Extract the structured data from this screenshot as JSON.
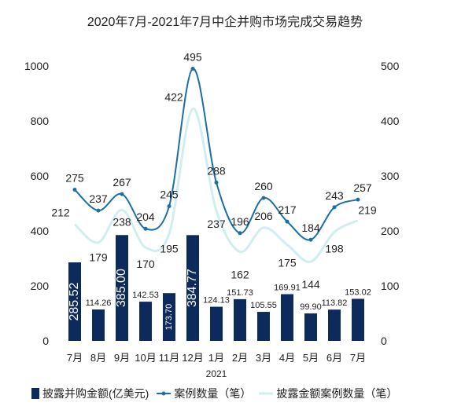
{
  "chart_data": {
    "type": "bar",
    "title": "2020年7月-2021年7月中企并购市场完成交易趋势",
    "categories": [
      "7月",
      "8月",
      "9月",
      "10月",
      "11月",
      "12月",
      "1月",
      "2月",
      "3月",
      "4月",
      "5月",
      "6月",
      "7月"
    ],
    "year_label": "2021",
    "y_left": {
      "ticks": [
        0,
        200,
        400,
        600,
        800,
        1000
      ],
      "lim": [
        0,
        1000
      ]
    },
    "y_right": {
      "ticks": [
        0,
        100,
        200,
        300,
        400,
        500
      ],
      "lim": [
        0,
        500
      ]
    },
    "series": [
      {
        "name": "披露并购金额(亿美元)",
        "type": "bar",
        "axis": "left",
        "color": "#0d2a5c",
        "values": [
          285.52,
          114.26,
          385.0,
          142.53,
          173.7,
          384.77,
          124.13,
          151.73,
          105.55,
          169.91,
          99.9,
          113.82,
          153.02
        ],
        "labels": [
          "285.52",
          "114.26",
          "385.00",
          "142.53",
          "173.70",
          "384.77",
          "124.13",
          "151.73",
          "105.55",
          "169.91",
          "99.90",
          "113.82",
          "153.02"
        ]
      },
      {
        "name": "案例数量（笔）",
        "type": "line",
        "axis": "right",
        "color": "#1a6fa8",
        "values": [
          275,
          237,
          267,
          204,
          245,
          495,
          288,
          196,
          260,
          217,
          184,
          243,
          257
        ],
        "labels": [
          "275",
          "237",
          "267",
          "204",
          "245",
          "495",
          "288",
          "196",
          "260",
          "217",
          "184",
          "243",
          "257"
        ]
      },
      {
        "name": "披露金额案例数量（笔）",
        "type": "line",
        "axis": "right",
        "color": "#cfeef0",
        "values": [
          212,
          179,
          238,
          170,
          195,
          422,
          237,
          162,
          206,
          175,
          144,
          198,
          219
        ],
        "labels": [
          "212",
          "179",
          "238",
          "170",
          "195",
          "422",
          "237",
          "162",
          "206",
          "175",
          "144",
          "198",
          "219"
        ]
      }
    ]
  }
}
